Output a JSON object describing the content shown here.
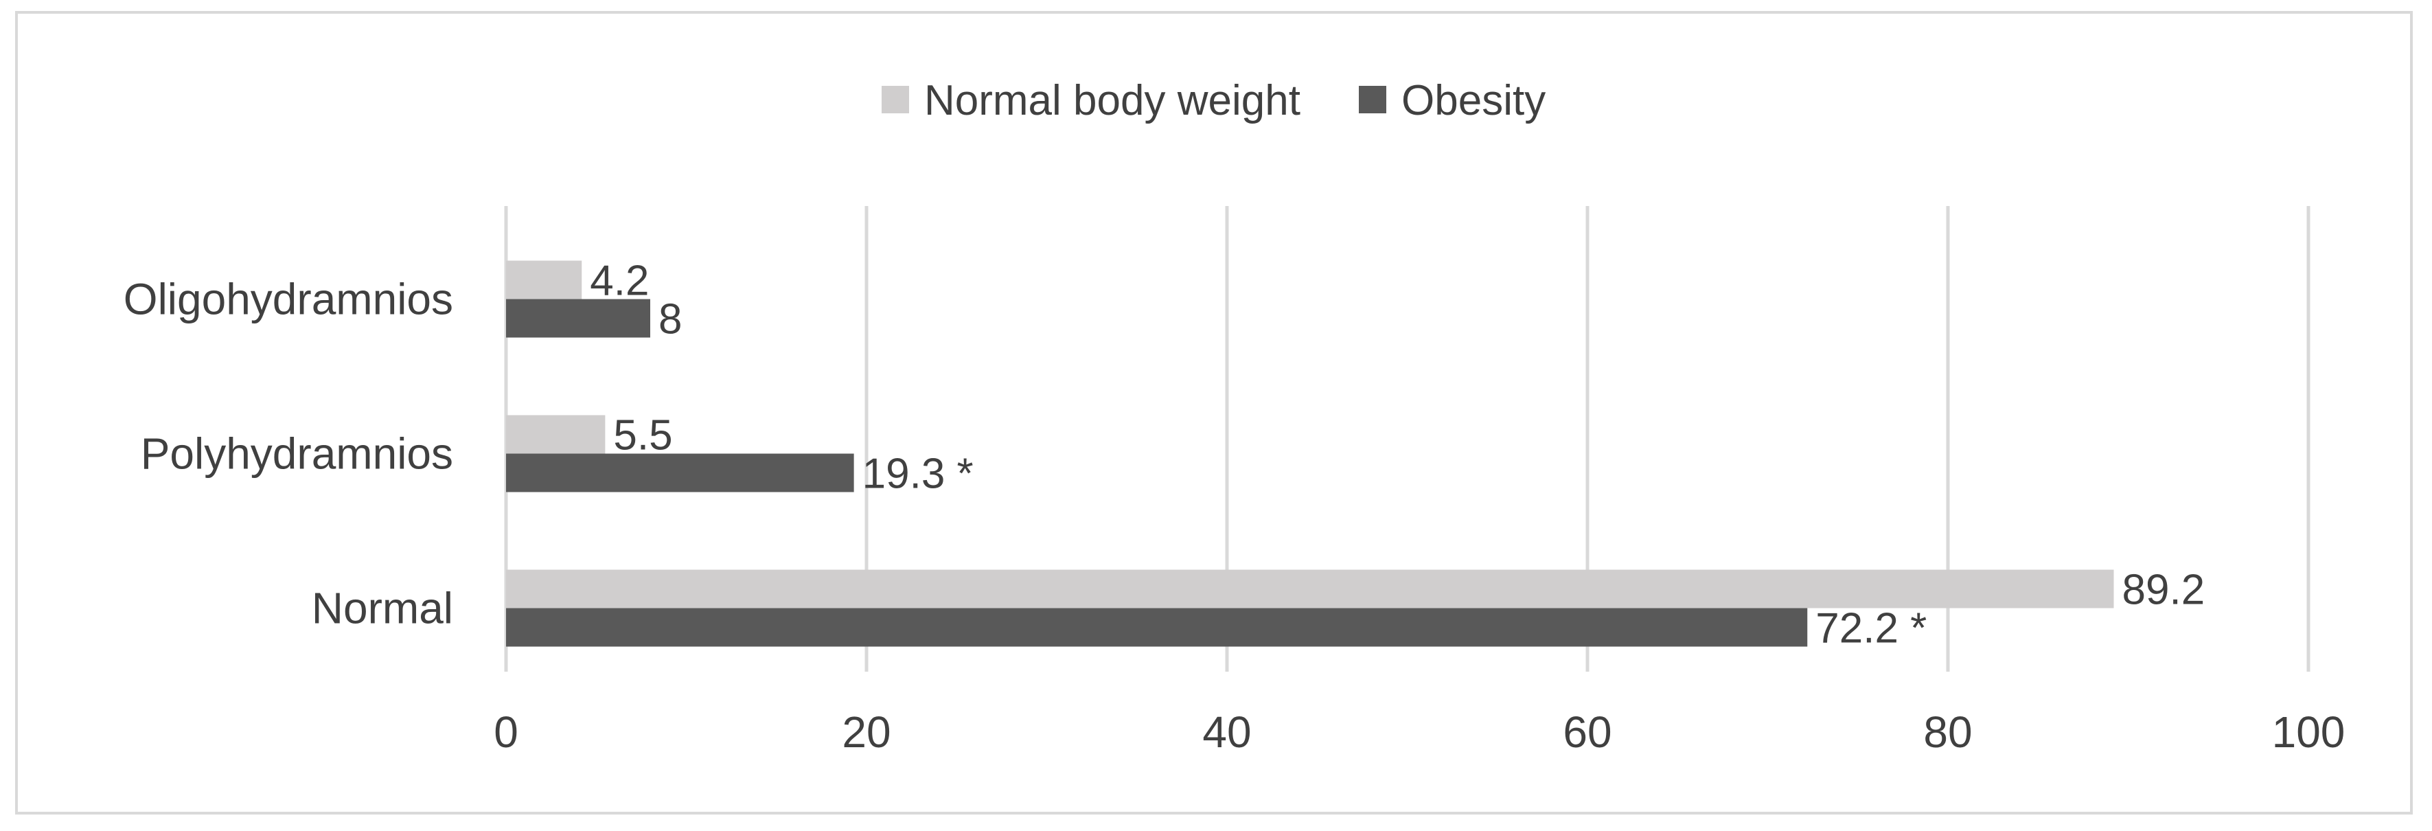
{
  "chart_data": {
    "type": "bar",
    "orientation": "horizontal",
    "categories": [
      "Normal",
      "Polyhydramnios",
      "Oligohydramnios"
    ],
    "series": [
      {
        "name": "Normal body weight",
        "color": "#d0cece",
        "values": [
          89.2,
          5.5,
          4.2
        ],
        "labels": [
          "89.2",
          "5.5",
          "4.2"
        ]
      },
      {
        "name": "Obesity",
        "color": "#595959",
        "values": [
          72.2,
          19.3,
          8
        ],
        "labels": [
          "72.2 *",
          "19.3 *",
          "8"
        ]
      }
    ],
    "xlim": [
      0,
      100
    ],
    "xticks": [
      0,
      20,
      40,
      60,
      80,
      100
    ],
    "xtick_labels": [
      "0",
      "20",
      "40",
      "60",
      "80",
      "100"
    ],
    "grid": "vertical",
    "legend_position": "top-center",
    "title": "",
    "xlabel": "",
    "ylabel": ""
  }
}
